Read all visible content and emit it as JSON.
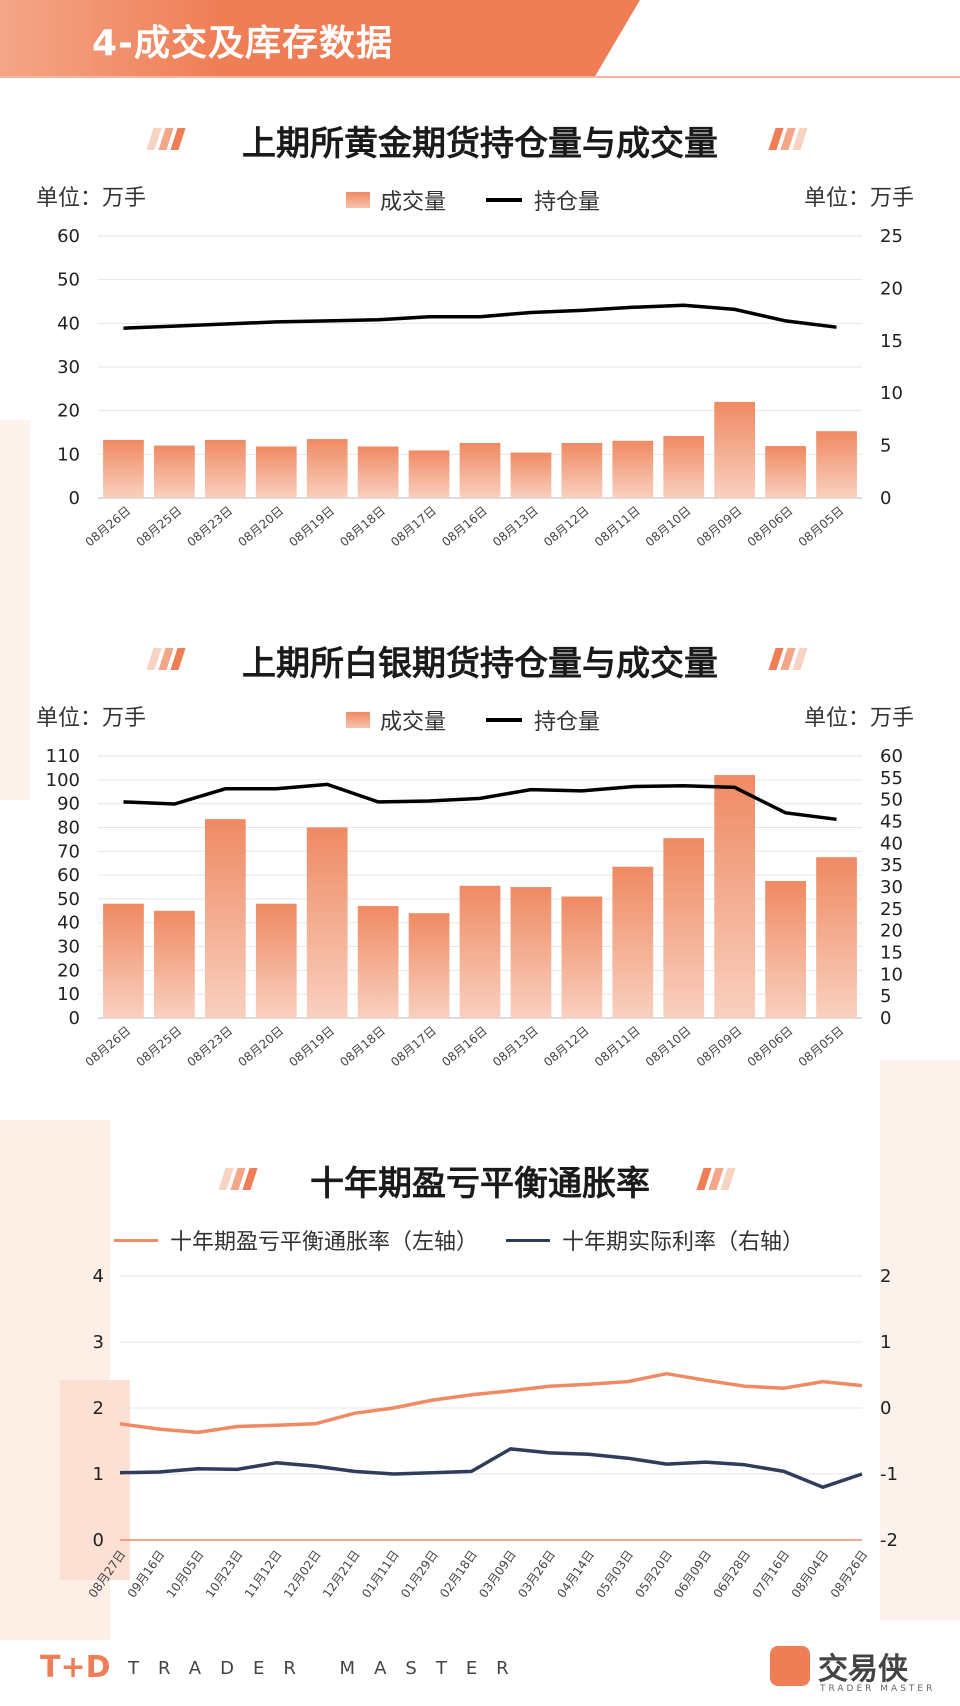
{
  "header": {
    "title": "4-成交及库存数据"
  },
  "footer": {
    "brand_mark": "T+D",
    "brand_text": "TRADER MASTER",
    "logo_text": "交易侠",
    "logo_sub": "TRADER MASTER"
  },
  "colors": {
    "accent": "#ef7d55",
    "bar": "#ef8a63",
    "line_black": "#000000",
    "line_navy": "#2e3d5c"
  },
  "chart_data": [
    {
      "type": "bar",
      "title": "上期所黄金期货持仓量与成交量",
      "unit_left": "单位：万手",
      "unit_right": "单位：万手",
      "legend": [
        "成交量",
        "持仓量"
      ],
      "legend_position": "top",
      "categories": [
        "08月26日",
        "08月25日",
        "08月23日",
        "08月20日",
        "08月19日",
        "08月18日",
        "08月17日",
        "08月16日",
        "08月13日",
        "08月12日",
        "08月11日",
        "08月10日",
        "08月09日",
        "08月06日",
        "08月05日"
      ],
      "ylim": [
        0,
        60
      ],
      "y_ticks": [
        0,
        10,
        20,
        30,
        40,
        50,
        60
      ],
      "y2lim": [
        0,
        25
      ],
      "y2_ticks": [
        0,
        5,
        10,
        15,
        20,
        25
      ],
      "series": [
        {
          "name": "成交量",
          "type": "bar",
          "axis": "left",
          "values": [
            13.3,
            12.0,
            13.3,
            11.8,
            13.5,
            11.8,
            10.9,
            12.6,
            10.4,
            12.6,
            13.1,
            14.2,
            22.0,
            11.9,
            15.3
          ]
        },
        {
          "name": "持仓量",
          "type": "line",
          "axis": "right",
          "values": [
            16.2,
            16.4,
            16.6,
            16.8,
            16.9,
            17.0,
            17.3,
            17.3,
            17.7,
            17.9,
            18.2,
            18.4,
            18.0,
            16.9,
            16.3
          ]
        }
      ],
      "grid": true
    },
    {
      "type": "bar",
      "title": "上期所白银期货持仓量与成交量",
      "unit_left": "单位：万手",
      "unit_right": "单位：万手",
      "legend": [
        "成交量",
        "持仓量"
      ],
      "legend_position": "top",
      "categories": [
        "08月26日",
        "08月25日",
        "08月23日",
        "08月20日",
        "08月19日",
        "08月18日",
        "08月17日",
        "08月16日",
        "08月13日",
        "08月12日",
        "08月11日",
        "08月10日",
        "08月09日",
        "08月06日",
        "08月05日"
      ],
      "ylim": [
        0,
        110
      ],
      "y_ticks": [
        0,
        10,
        20,
        30,
        40,
        50,
        60,
        70,
        80,
        90,
        100,
        110
      ],
      "y2lim": [
        0,
        60
      ],
      "y2_ticks": [
        0,
        5,
        10,
        15,
        20,
        25,
        30,
        35,
        40,
        45,
        50,
        55,
        60
      ],
      "series": [
        {
          "name": "成交量",
          "type": "bar",
          "axis": "left",
          "values": [
            48,
            45,
            83.5,
            48,
            80,
            47,
            44,
            55.5,
            55,
            51,
            63.5,
            75.5,
            102,
            57.5,
            67.5
          ]
        },
        {
          "name": "持仓量",
          "type": "line",
          "axis": "right",
          "values": [
            49.5,
            49,
            52.5,
            52.5,
            53.5,
            49.5,
            49.7,
            50.3,
            52.3,
            52,
            53,
            53.2,
            52.8,
            47,
            45.5
          ]
        }
      ],
      "grid": true
    },
    {
      "type": "line",
      "title": "十年期盈亏平衡通胀率",
      "legend": [
        "十年期盈亏平衡通胀率（左轴）",
        "十年期实际利率（右轴）"
      ],
      "legend_position": "top",
      "x_ticks": [
        "08月27日",
        "09月16日",
        "10月05日",
        "10月23日",
        "11月12日",
        "12月02日",
        "12月21日",
        "01月11日",
        "01月29日",
        "02月18日",
        "03月09日",
        "03月26日",
        "04月14日",
        "05月03日",
        "05月20日",
        "06月09日",
        "06月28日",
        "07月16日",
        "08月04日",
        "08月26日"
      ],
      "ylim": [
        0,
        4
      ],
      "y_ticks": [
        0,
        1,
        2,
        3,
        4
      ],
      "y2lim": [
        -2,
        2
      ],
      "y2_ticks": [
        -2,
        -1,
        0,
        1,
        2
      ],
      "series": [
        {
          "name": "十年期盈亏平衡通胀率（左轴）",
          "axis": "left",
          "x": [
            "08月27日",
            "09月16日",
            "10月05日",
            "10月23日",
            "11月12日",
            "12月02日",
            "12月21日",
            "01月11日",
            "01月29日",
            "02月18日",
            "03月09日",
            "03月26日",
            "04月14日",
            "05月03日",
            "05月20日",
            "06月09日",
            "06月28日",
            "07月16日",
            "08月04日",
            "08月26日"
          ],
          "values": [
            1.76,
            1.68,
            1.63,
            1.72,
            1.74,
            1.76,
            1.92,
            2.0,
            2.12,
            2.2,
            2.26,
            2.33,
            2.36,
            2.4,
            2.52,
            2.42,
            2.33,
            2.3,
            2.4,
            2.34
          ]
        },
        {
          "name": "十年期实际利率（右轴）",
          "axis": "right",
          "x": [
            "08月27日",
            "09月16日",
            "10月05日",
            "10月23日",
            "11月12日",
            "12月02日",
            "12月21日",
            "01月11日",
            "01月29日",
            "02月18日",
            "03月09日",
            "03月26日",
            "04月14日",
            "05月03日",
            "05月20日",
            "06月09日",
            "06月28日",
            "07月16日",
            "08月04日",
            "08月26日"
          ],
          "values": [
            -0.98,
            -0.97,
            -0.92,
            -0.93,
            -0.83,
            -0.88,
            -0.96,
            -1.0,
            -0.98,
            -0.96,
            -0.62,
            -0.68,
            -0.7,
            -0.76,
            -0.85,
            -0.82,
            -0.86,
            -0.96,
            -1.2,
            -1.0
          ]
        }
      ],
      "grid": true
    }
  ]
}
